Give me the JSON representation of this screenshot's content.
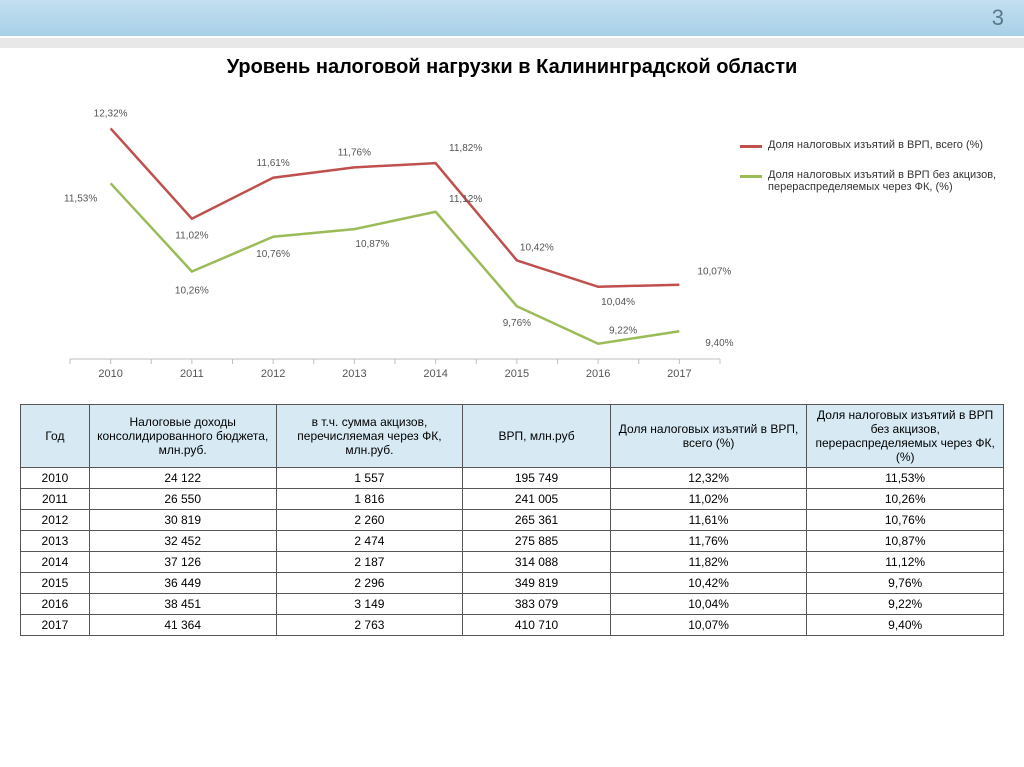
{
  "page_number": "3",
  "title": "Уровень налоговой нагрузки в Калининградской области",
  "chart": {
    "type": "line",
    "background_color": "#ffffff",
    "axis_color": "#bfbfbf",
    "tick_color": "#bfbfbf",
    "years": [
      "2010",
      "2011",
      "2012",
      "2013",
      "2014",
      "2015",
      "2016",
      "2017"
    ],
    "ylim": [
      9.0,
      12.6
    ],
    "series": [
      {
        "name": "Доля налоговых изъятий в ВРП, всего (%)",
        "color": "#c0504d",
        "line_width": 2.5,
        "values": [
          12.32,
          11.02,
          11.61,
          11.76,
          11.82,
          10.42,
          10.04,
          10.07
        ],
        "labels": [
          "12,32%",
          "11,02%",
          "11,61%",
          "11,76%",
          "11,82%",
          "10,42%",
          "10,04%",
          "10,07%"
        ]
      },
      {
        "name": "Доля налоговых изъятий в ВРП без акцизов, перераспределяемых через ФК, (%)",
        "color": "#9bbb59",
        "line_width": 2.5,
        "values": [
          11.53,
          10.26,
          10.76,
          10.87,
          11.12,
          9.76,
          9.22,
          9.4
        ],
        "labels": [
          "11,53%",
          "10,26%",
          "10,76%",
          "10,87%",
          "11,12%",
          "9,76%",
          "9,22%",
          "9,40%"
        ]
      }
    ]
  },
  "table": {
    "header_bg": "#d7eaf4",
    "border_color": "#555555",
    "columns": [
      "Год",
      "Налоговые доходы консолидированного бюджета, млн.руб.",
      "в т.ч. сумма акцизов, перечисляемая через ФК, млн.руб.",
      "ВРП, млн.руб",
      "Доля налоговых изъятий в ВРП, всего (%)",
      "Доля налоговых изъятий в ВРП без акцизов, перераспределяемых через ФК, (%)"
    ],
    "col_widths": [
      "7%",
      "19%",
      "19%",
      "15%",
      "20%",
      "20%"
    ],
    "rows": [
      [
        "2010",
        "24 122",
        "1 557",
        "195 749",
        "12,32%",
        "11,53%"
      ],
      [
        "2011",
        "26 550",
        "1 816",
        "241 005",
        "11,02%",
        "10,26%"
      ],
      [
        "2012",
        "30 819",
        "2 260",
        "265 361",
        "11,61%",
        "10,76%"
      ],
      [
        "2013",
        "32 452",
        "2 474",
        "275 885",
        "11,76%",
        "10,87%"
      ],
      [
        "2014",
        "37 126",
        "2 187",
        "314 088",
        "11,82%",
        "11,12%"
      ],
      [
        "2015",
        "36 449",
        "2 296",
        "349 819",
        "10,42%",
        "9,76%"
      ],
      [
        "2016",
        "38 451",
        "3 149",
        "383 079",
        "10,04%",
        "9,22%"
      ],
      [
        "2017",
        "41 364",
        "2 763",
        "410 710",
        "10,07%",
        "9,40%"
      ]
    ]
  }
}
